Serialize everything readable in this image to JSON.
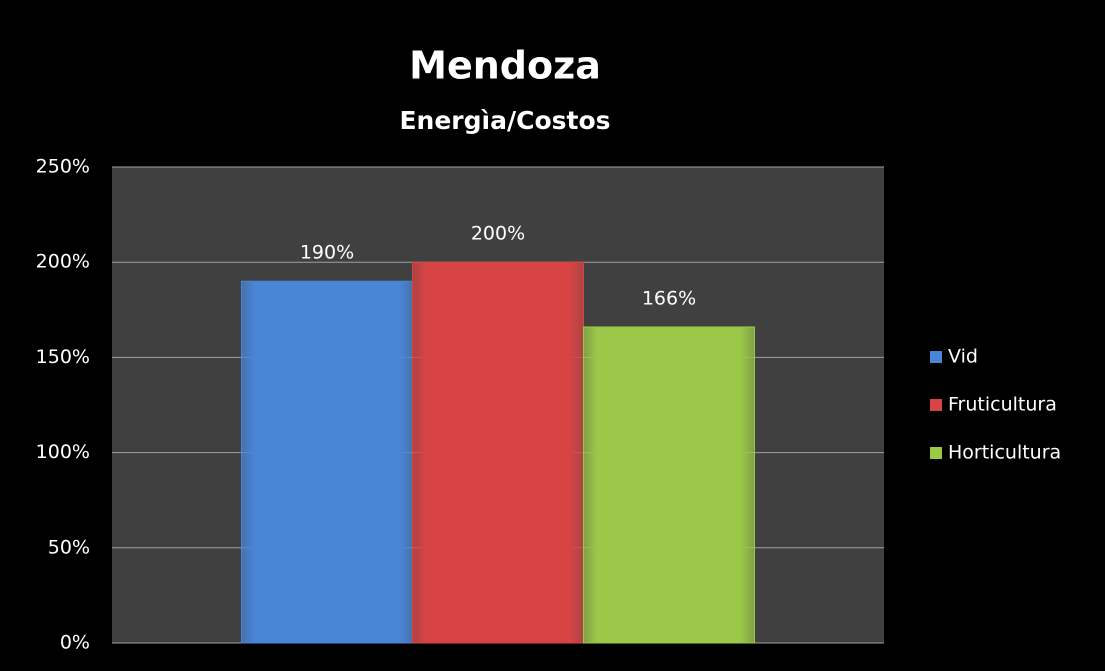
{
  "chart_data": {
    "type": "bar",
    "title": "Mendoza",
    "subtitle": "Energìa/Costos",
    "categories": [
      null
    ],
    "series": [
      {
        "name": "Vid",
        "color": "#4a86d8",
        "values": [
          190
        ],
        "value_labels": [
          "190%"
        ]
      },
      {
        "name": "Fruticultura",
        "color": "#d84444",
        "values": [
          200
        ],
        "value_labels": [
          "200%"
        ]
      },
      {
        "name": "Horticultura",
        "color": "#9bc848",
        "values": [
          166
        ],
        "value_labels": [
          "166%"
        ]
      }
    ],
    "ylim": [
      0,
      250
    ],
    "yticks": [
      {
        "value": 0,
        "label": "0%"
      },
      {
        "value": 50,
        "label": "50%"
      },
      {
        "value": 100,
        "label": "100%"
      },
      {
        "value": 150,
        "label": "150%"
      },
      {
        "value": 200,
        "label": "200%"
      },
      {
        "value": 250,
        "label": "250%"
      }
    ],
    "grid": true,
    "legend": "right"
  }
}
